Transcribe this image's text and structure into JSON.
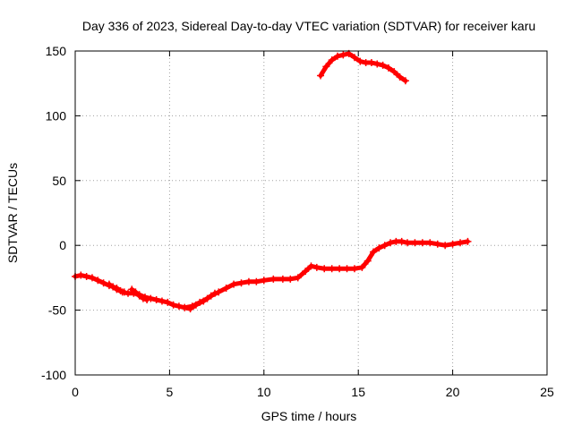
{
  "chart_data": {
    "type": "scatter",
    "title": "Day 336 of 2023, Sidereal Day-to-day VTEC variation (SDTVAR) for receiver karu",
    "xlabel": "GPS time / hours",
    "ylabel": "SDTVAR / TECUs",
    "xlim": [
      0,
      25
    ],
    "ylim": [
      -100,
      150
    ],
    "xticks": [
      0,
      5,
      10,
      15,
      20,
      25
    ],
    "yticks": [
      -100,
      -50,
      0,
      50,
      100,
      150
    ],
    "grid": true,
    "marker": "+",
    "series_color": "#ff0000",
    "series": [
      {
        "name": "main",
        "points": [
          [
            0.0,
            -24
          ],
          [
            0.3,
            -23
          ],
          [
            0.6,
            -24
          ],
          [
            0.9,
            -25
          ],
          [
            1.2,
            -27
          ],
          [
            1.5,
            -29
          ],
          [
            1.8,
            -31
          ],
          [
            2.0,
            -32
          ],
          [
            2.2,
            -34
          ],
          [
            2.5,
            -36
          ],
          [
            2.8,
            -37
          ],
          [
            3.1,
            -37
          ],
          [
            3.4,
            -38
          ],
          [
            3.7,
            -40
          ],
          [
            4.0,
            -41
          ],
          [
            4.3,
            -42
          ],
          [
            4.6,
            -43
          ],
          [
            4.9,
            -44
          ],
          [
            5.2,
            -46
          ],
          [
            5.5,
            -47
          ],
          [
            5.8,
            -48
          ],
          [
            6.1,
            -49
          ],
          [
            6.4,
            -46
          ],
          [
            6.8,
            -43
          ],
          [
            7.2,
            -39
          ],
          [
            7.6,
            -36
          ],
          [
            8.0,
            -33
          ],
          [
            8.4,
            -30
          ],
          [
            8.8,
            -29
          ],
          [
            9.2,
            -28
          ],
          [
            9.6,
            -28
          ],
          [
            10.0,
            -27
          ],
          [
            10.5,
            -26
          ],
          [
            11.0,
            -26
          ],
          [
            11.4,
            -26
          ],
          [
            11.8,
            -25
          ],
          [
            12.2,
            -20
          ],
          [
            12.5,
            -16
          ],
          [
            12.8,
            -17
          ],
          [
            13.2,
            -18
          ],
          [
            13.6,
            -18
          ],
          [
            14.0,
            -18
          ],
          [
            14.4,
            -18
          ],
          [
            14.8,
            -18
          ],
          [
            15.2,
            -17
          ],
          [
            15.5,
            -12
          ],
          [
            15.8,
            -5
          ],
          [
            16.1,
            -2
          ],
          [
            16.4,
            0
          ],
          [
            16.7,
            2
          ],
          [
            17.0,
            3
          ],
          [
            17.3,
            3
          ],
          [
            17.6,
            2
          ],
          [
            18.0,
            2
          ],
          [
            18.4,
            2
          ],
          [
            18.8,
            2
          ],
          [
            19.2,
            1
          ],
          [
            19.6,
            0
          ],
          [
            20.0,
            1
          ],
          [
            20.4,
            2
          ],
          [
            20.8,
            3
          ]
        ]
      },
      {
        "name": "branch-1",
        "points": [
          [
            1.8,
            -30
          ],
          [
            2.0,
            -32
          ],
          [
            2.2,
            -33
          ],
          [
            2.4,
            -35
          ],
          [
            2.6,
            -36
          ]
        ]
      },
      {
        "name": "branch-2",
        "points": [
          [
            3.0,
            -34
          ],
          [
            3.2,
            -36
          ],
          [
            3.4,
            -39
          ],
          [
            3.6,
            -41
          ],
          [
            3.8,
            -42
          ]
        ]
      },
      {
        "name": "branch-3",
        "points": [
          [
            5.8,
            -48
          ],
          [
            6.2,
            -47
          ],
          [
            6.6,
            -44
          ],
          [
            7.0,
            -41
          ],
          [
            7.4,
            -37
          ]
        ]
      },
      {
        "name": "arc",
        "points": [
          [
            13.0,
            131
          ],
          [
            13.3,
            138
          ],
          [
            13.6,
            143
          ],
          [
            13.9,
            146
          ],
          [
            14.2,
            147
          ],
          [
            14.5,
            148
          ],
          [
            14.8,
            145
          ],
          [
            15.1,
            142
          ],
          [
            15.4,
            141
          ],
          [
            15.7,
            141
          ],
          [
            16.0,
            140
          ],
          [
            16.3,
            139
          ],
          [
            16.6,
            137
          ],
          [
            16.9,
            134
          ],
          [
            17.2,
            130
          ],
          [
            17.5,
            127
          ]
        ]
      }
    ]
  }
}
